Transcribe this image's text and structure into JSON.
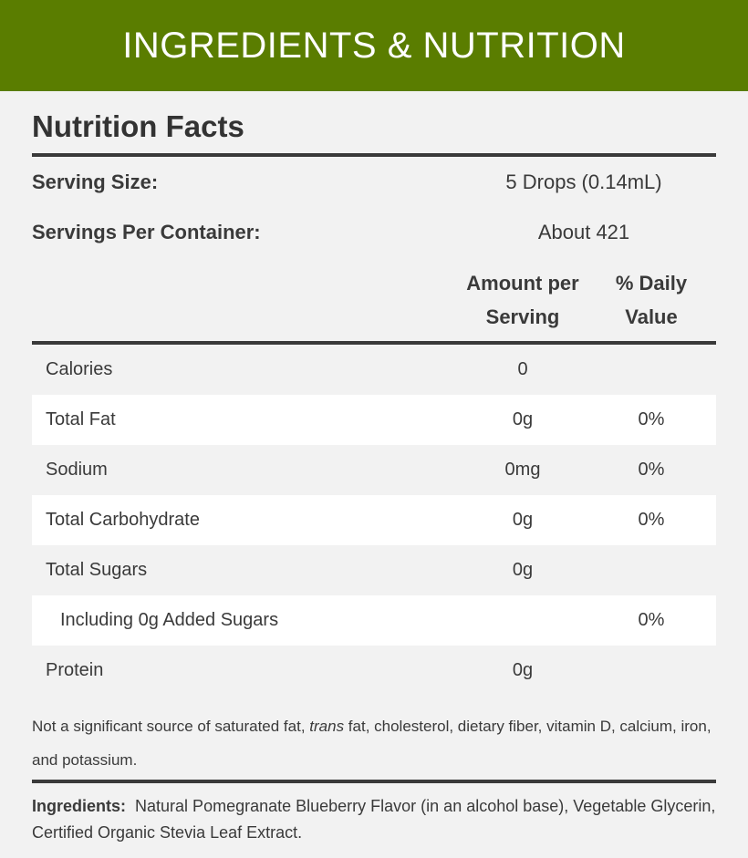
{
  "banner": {
    "title": "INGREDIENTS & NUTRITION"
  },
  "nutrition": {
    "title": "Nutrition Facts",
    "serving_size_label": "Serving Size:",
    "serving_size_value": "5 Drops (0.14mL)",
    "servings_label": "Servings Per Container:",
    "servings_value": "About 421",
    "col_amount": [
      "Amount per",
      "Serving"
    ],
    "col_dv": [
      "% Daily",
      "Value"
    ],
    "rows": [
      {
        "name": "Calories",
        "amount": "0",
        "dv": ""
      },
      {
        "name": "Total Fat",
        "amount": "0g",
        "dv": "0%"
      },
      {
        "name": "Sodium",
        "amount": "0mg",
        "dv": "0%"
      },
      {
        "name": "Total Carbohydrate",
        "amount": "0g",
        "dv": "0%"
      },
      {
        "name": "Total Sugars",
        "amount": "0g",
        "dv": ""
      },
      {
        "name": "Including 0g Added Sugars",
        "amount": "",
        "dv": "0%"
      },
      {
        "name": "Protein",
        "amount": "0g",
        "dv": ""
      }
    ],
    "footnote_before": "Not a significant source of saturated fat, ",
    "footnote_italic": "trans",
    "footnote_after": " fat, cholesterol, dietary fiber, vitamin D, calcium, iron, and potassium.",
    "ingredients_label": "Ingredients:",
    "ingredients_text": "Natural Pomegranate Blueberry Flavor (in an alcohol base), Vegetable Glycerin, Certified Organic Stevia Leaf Extract."
  },
  "colors": {
    "banner": "#5a7d00",
    "background": "#f2f2f2",
    "rule": "#3a3a3a"
  }
}
